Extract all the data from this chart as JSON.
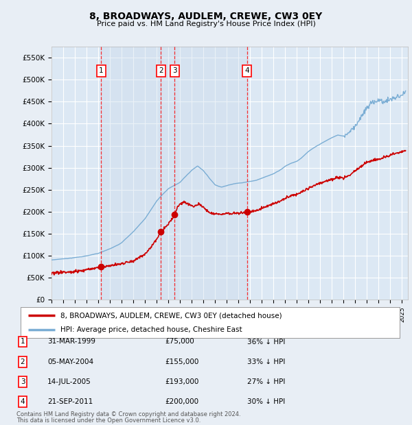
{
  "title": "8, BROADWAYS, AUDLEM, CREWE, CW3 0EY",
  "subtitle": "Price paid vs. HM Land Registry's House Price Index (HPI)",
  "legend_label_red": "8, BROADWAYS, AUDLEM, CREWE, CW3 0EY (detached house)",
  "legend_label_blue": "HPI: Average price, detached house, Cheshire East",
  "footer_line1": "Contains HM Land Registry data © Crown copyright and database right 2024.",
  "footer_line2": "This data is licensed under the Open Government Licence v3.0.",
  "transactions": [
    {
      "num": 1,
      "date": "31-MAR-1999",
      "price": 75000,
      "pct": "36%",
      "year": 1999.25
    },
    {
      "num": 2,
      "date": "05-MAY-2004",
      "price": 155000,
      "pct": "33%",
      "year": 2004.37
    },
    {
      "num": 3,
      "date": "14-JUL-2005",
      "price": 193000,
      "pct": "27%",
      "year": 2005.54
    },
    {
      "num": 4,
      "date": "21-SEP-2011",
      "price": 200000,
      "pct": "30%",
      "year": 2011.72
    }
  ],
  "ylim": [
    0,
    575000
  ],
  "yticks": [
    0,
    50000,
    100000,
    150000,
    200000,
    250000,
    300000,
    350000,
    400000,
    450000,
    500000,
    550000
  ],
  "ytick_labels": [
    "£0",
    "£50K",
    "£100K",
    "£150K",
    "£200K",
    "£250K",
    "£300K",
    "£350K",
    "£400K",
    "£450K",
    "£500K",
    "£550K"
  ],
  "xlim_start": 1995.0,
  "xlim_end": 2025.5,
  "background_color": "#e8eef5",
  "plot_bg_color": "#dce8f4",
  "red_color": "#cc0000",
  "blue_color": "#7aadd4",
  "grid_color": "#ffffff",
  "shade_color": "#c8d8ea"
}
